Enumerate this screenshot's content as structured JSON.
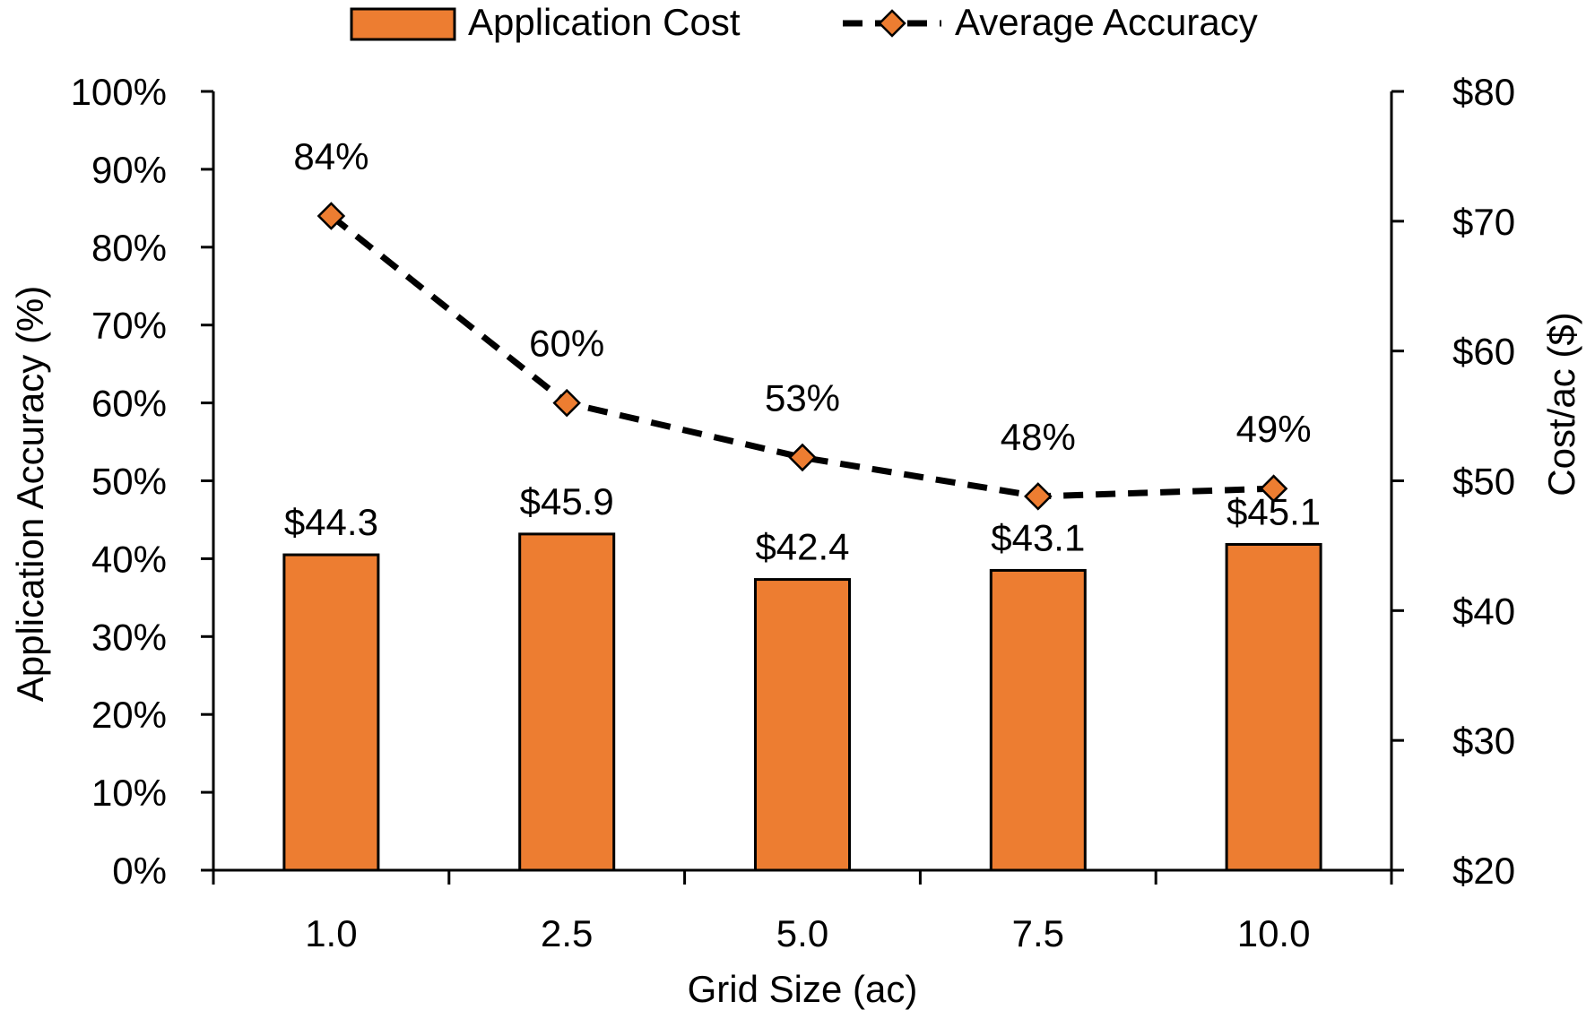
{
  "chart_data": {
    "type": "bar",
    "categories": [
      "1.0",
      "2.5",
      "5.0",
      "7.5",
      "10.0"
    ],
    "xlabel": "Grid Size (ac)",
    "ylabel": "Application Accuracy (%)",
    "y2label": "Cost/ac ($)",
    "ylim": [
      0,
      100
    ],
    "y2lim": [
      20,
      80
    ],
    "yticks": [
      "0%",
      "10%",
      "20%",
      "30%",
      "40%",
      "50%",
      "60%",
      "70%",
      "80%",
      "90%",
      "100%"
    ],
    "y2ticks": [
      "$20",
      "$30",
      "$40",
      "$50",
      "$60",
      "$70",
      "$80"
    ],
    "legend_position": "top",
    "grid": false,
    "series": [
      {
        "name": "Application Cost",
        "type": "bar",
        "axis": "right",
        "values": [
          44.3,
          45.9,
          42.4,
          43.1,
          45.1
        ],
        "labels": [
          "$44.3",
          "$45.9",
          "$42.4",
          "$43.1",
          "$45.1"
        ],
        "color": "#ED7D31"
      },
      {
        "name": "Average Accuracy",
        "type": "line",
        "axis": "left",
        "style": "dashed",
        "marker": "diamond",
        "values": [
          84,
          60,
          53,
          48,
          49
        ],
        "labels": [
          "84%",
          "60%",
          "53%",
          "48%",
          "49%"
        ],
        "color": "#000000",
        "marker_color": "#ED7D31"
      }
    ]
  }
}
